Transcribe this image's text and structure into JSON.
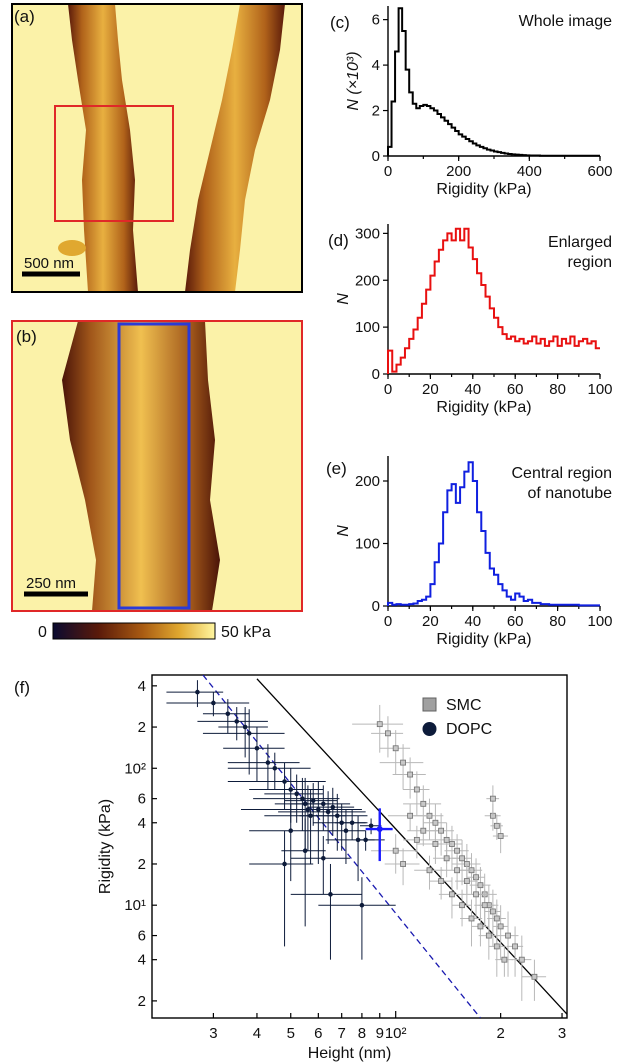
{
  "panels": {
    "a": {
      "label": "(a)",
      "scalebar": "500 nm"
    },
    "b": {
      "label": "(b)",
      "scalebar": "250 nm"
    },
    "colorbar": {
      "min": "0",
      "max": "50 kPa",
      "colors": [
        "#0a0a30",
        "#5a1a0a",
        "#a85a12",
        "#e0a830",
        "#fff6a0"
      ]
    }
  },
  "chart_data": [
    {
      "id": "c",
      "type": "histogram",
      "label": "(c)",
      "annotation": [
        "Whole image"
      ],
      "xlabel": "Rigidity (kPa)",
      "ylabel": "N (×10³)",
      "xlim": [
        0,
        600
      ],
      "ylim": [
        0,
        6.6
      ],
      "xticks": [
        "0",
        "200",
        "400",
        "600"
      ],
      "xtick_values": [
        0,
        200,
        400,
        600
      ],
      "yticks": [
        "0",
        "2",
        "4",
        "6"
      ],
      "ytick_values": [
        0,
        2,
        4,
        6
      ],
      "color": "#000000",
      "bin_width": 10,
      "values": [
        0.4,
        2.4,
        4.6,
        6.5,
        5.5,
        3.8,
        2.8,
        2.3,
        2.1,
        2.2,
        2.25,
        2.2,
        2.1,
        2.0,
        1.85,
        1.7,
        1.55,
        1.4,
        1.25,
        1.1,
        0.95,
        0.85,
        0.75,
        0.65,
        0.55,
        0.47,
        0.4,
        0.34,
        0.28,
        0.24,
        0.2,
        0.17,
        0.14,
        0.11,
        0.09,
        0.07,
        0.06,
        0.05,
        0.04,
        0.03,
        0.02,
        0.02,
        0.02,
        0.01,
        0.01,
        0.01,
        0.01,
        0.01,
        0.01,
        0.01,
        0.01,
        0.01,
        0.01,
        0.01,
        0.01,
        0.01,
        0.01,
        0.01,
        0.01,
        0.01
      ]
    },
    {
      "id": "d",
      "type": "histogram",
      "label": "(d)",
      "annotation": [
        "Enlarged",
        "region"
      ],
      "xlabel": "Rigidity (kPa)",
      "ylabel": "N",
      "xlim": [
        0,
        100
      ],
      "ylim": [
        0,
        320
      ],
      "xticks": [
        "0",
        "20",
        "40",
        "60",
        "80",
        "100"
      ],
      "xtick_values": [
        0,
        20,
        40,
        60,
        80,
        100
      ],
      "yticks": [
        "0",
        "100",
        "200",
        "300"
      ],
      "ytick_values": [
        0,
        100,
        200,
        300
      ],
      "color": "#e81010",
      "bin_width": 2,
      "values": [
        50,
        5,
        20,
        35,
        55,
        75,
        95,
        120,
        150,
        180,
        210,
        240,
        265,
        285,
        300,
        285,
        310,
        285,
        310,
        270,
        245,
        215,
        190,
        165,
        140,
        120,
        100,
        85,
        75,
        80,
        70,
        75,
        65,
        70,
        80,
        65,
        75,
        60,
        70,
        80,
        60,
        75,
        65,
        80,
        60,
        70,
        75,
        65,
        70,
        55
      ]
    },
    {
      "id": "e",
      "type": "histogram",
      "label": "(e)",
      "annotation": [
        "Central region",
        "of nanotube"
      ],
      "xlabel": "Rigidity (kPa)",
      "ylabel": "N",
      "xlim": [
        0,
        100
      ],
      "ylim": [
        0,
        240
      ],
      "xticks": [
        "0",
        "20",
        "40",
        "60",
        "80",
        "100"
      ],
      "xtick_values": [
        0,
        20,
        40,
        60,
        80,
        100
      ],
      "yticks": [
        "0",
        "100",
        "200"
      ],
      "ytick_values": [
        0,
        100,
        200
      ],
      "color": "#1020e0",
      "bin_width": 2,
      "values": [
        5,
        2,
        3,
        2,
        2,
        3,
        4,
        8,
        10,
        15,
        35,
        70,
        100,
        150,
        185,
        195,
        165,
        190,
        215,
        230,
        200,
        150,
        120,
        85,
        60,
        50,
        35,
        25,
        15,
        10,
        20,
        15,
        8,
        10,
        5,
        5,
        3,
        3,
        2,
        2,
        2,
        2,
        2,
        2,
        2,
        1,
        1,
        1,
        1,
        1
      ]
    },
    {
      "id": "f",
      "type": "scatter",
      "label": "(f)",
      "scale": "log-log",
      "xlabel": "Height (nm)",
      "ylabel": "Rigidity (kPa)",
      "xlim": [
        20,
        310
      ],
      "ylim": [
        1.5,
        480
      ],
      "xticks": [
        "3",
        "4",
        "5",
        "6",
        "7",
        "8",
        "9",
        "10²",
        "2",
        "3"
      ],
      "xtick_values": [
        30,
        40,
        50,
        60,
        70,
        80,
        90,
        100,
        200,
        300
      ],
      "yticks": [
        "4",
        "2",
        "10²",
        "6",
        "4",
        "2",
        "10¹",
        "6",
        "4",
        "2"
      ],
      "ytick_values": [
        400,
        200,
        100,
        60,
        40,
        20,
        10,
        6,
        4,
        2
      ],
      "legend": [
        {
          "name": "SMC",
          "marker": "square",
          "color": "#a0a0a0"
        },
        {
          "name": "DOPC",
          "marker": "circle",
          "color": "#0d1b3a"
        }
      ],
      "series": [
        {
          "name": "DOPC",
          "color": "#0d1b3a",
          "points": [
            [
              27,
              360,
              5,
              80
            ],
            [
              30,
              300,
              8,
              60
            ],
            [
              33,
              250,
              5,
              70
            ],
            [
              35,
              220,
              8,
              60
            ],
            [
              37,
              200,
              6,
              80
            ],
            [
              38,
              180,
              10,
              90
            ],
            [
              40,
              140,
              8,
              60
            ],
            [
              43,
              110,
              10,
              40
            ],
            [
              45,
              100,
              12,
              30
            ],
            [
              48,
              80,
              15,
              30
            ],
            [
              50,
              70,
              12,
              30
            ],
            [
              52,
              65,
              10,
              25
            ],
            [
              54,
              60,
              15,
              25
            ],
            [
              55,
              55,
              10,
              30
            ],
            [
              56,
              50,
              20,
              25
            ],
            [
              57,
              45,
              15,
              25
            ],
            [
              58,
              58,
              10,
              20
            ],
            [
              60,
              50,
              20,
              30
            ],
            [
              62,
              55,
              12,
              20
            ],
            [
              64,
              48,
              18,
              20
            ],
            [
              66,
              52,
              10,
              20
            ],
            [
              68,
              45,
              15,
              20
            ],
            [
              70,
              40,
              12,
              15
            ],
            [
              72,
              35,
              10,
              15
            ],
            [
              75,
              40,
              8,
              10
            ],
            [
              78,
              30,
              15,
              15
            ],
            [
              50,
              35,
              12,
              20
            ],
            [
              48,
              20,
              10,
              15
            ],
            [
              55,
              25,
              8,
              18
            ],
            [
              62,
              22,
              12,
              10
            ],
            [
              65,
              12,
              15,
              8
            ],
            [
              80,
              10,
              20,
              6
            ],
            [
              82,
              30,
              5,
              5
            ],
            [
              85,
              38,
              6,
              5
            ]
          ]
        },
        {
          "name": "SMC",
          "color": "#a0a0a0",
          "points": [
            [
              90,
              210,
              15,
              80
            ],
            [
              95,
              180,
              10,
              60
            ],
            [
              100,
              140,
              10,
              50
            ],
            [
              105,
              110,
              15,
              40
            ],
            [
              110,
              90,
              12,
              30
            ],
            [
              115,
              70,
              10,
              25
            ],
            [
              120,
              55,
              15,
              20
            ],
            [
              125,
              45,
              12,
              15
            ],
            [
              130,
              40,
              10,
              15
            ],
            [
              135,
              35,
              12,
              12
            ],
            [
              140,
              30,
              15,
              10
            ],
            [
              145,
              28,
              10,
              10
            ],
            [
              150,
              25,
              12,
              8
            ],
            [
              155,
              22,
              10,
              8
            ],
            [
              160,
              20,
              15,
              8
            ],
            [
              165,
              18,
              12,
              6
            ],
            [
              170,
              16,
              10,
              6
            ],
            [
              175,
              14,
              12,
              5
            ],
            [
              180,
              12,
              15,
              5
            ],
            [
              185,
              10,
              12,
              4
            ],
            [
              190,
              9,
              10,
              4
            ],
            [
              195,
              8,
              12,
              3
            ],
            [
              200,
              7,
              10,
              3
            ],
            [
              210,
              6,
              15,
              3
            ],
            [
              220,
              5,
              12,
              2
            ],
            [
              230,
              4,
              15,
              2
            ],
            [
              250,
              3,
              20,
              1
            ],
            [
              110,
              45,
              15,
              10
            ],
            [
              120,
              35,
              12,
              8
            ],
            [
              130,
              28,
              15,
              8
            ],
            [
              140,
              22,
              12,
              6
            ],
            [
              150,
              18,
              15,
              5
            ],
            [
              160,
              15,
              12,
              5
            ],
            [
              170,
              12,
              15,
              4
            ],
            [
              180,
              10,
              12,
              3
            ],
            [
              100,
              25,
              15,
              8
            ],
            [
              105,
              20,
              12,
              6
            ],
            [
              115,
              30,
              10,
              8
            ],
            [
              125,
              18,
              12,
              5
            ],
            [
              135,
              15,
              10,
              4
            ],
            [
              145,
              12,
              12,
              4
            ],
            [
              155,
              10,
              10,
              3
            ],
            [
              165,
              8,
              12,
              3
            ],
            [
              175,
              7,
              10,
              2
            ],
            [
              185,
              6,
              12,
              2
            ],
            [
              195,
              5,
              10,
              2
            ],
            [
              205,
              4,
              12,
              1
            ],
            [
              190,
              45,
              10,
              10
            ],
            [
              195,
              38,
              8,
              8
            ],
            [
              200,
              32,
              10,
              8
            ],
            [
              190,
              60,
              8,
              15
            ]
          ]
        },
        {
          "name": "highlight",
          "color": "#1a1aff",
          "points": [
            [
              90,
              36,
              8,
              15
            ]
          ]
        }
      ],
      "lines": [
        {
          "style": "solid",
          "color": "#000000",
          "from": [
            40,
            450
          ],
          "to": [
            310,
            1.6
          ]
        },
        {
          "style": "dashed",
          "color": "#1a1ab0",
          "from": [
            28,
            480
          ],
          "to": [
            175,
            1.5
          ]
        }
      ]
    }
  ]
}
